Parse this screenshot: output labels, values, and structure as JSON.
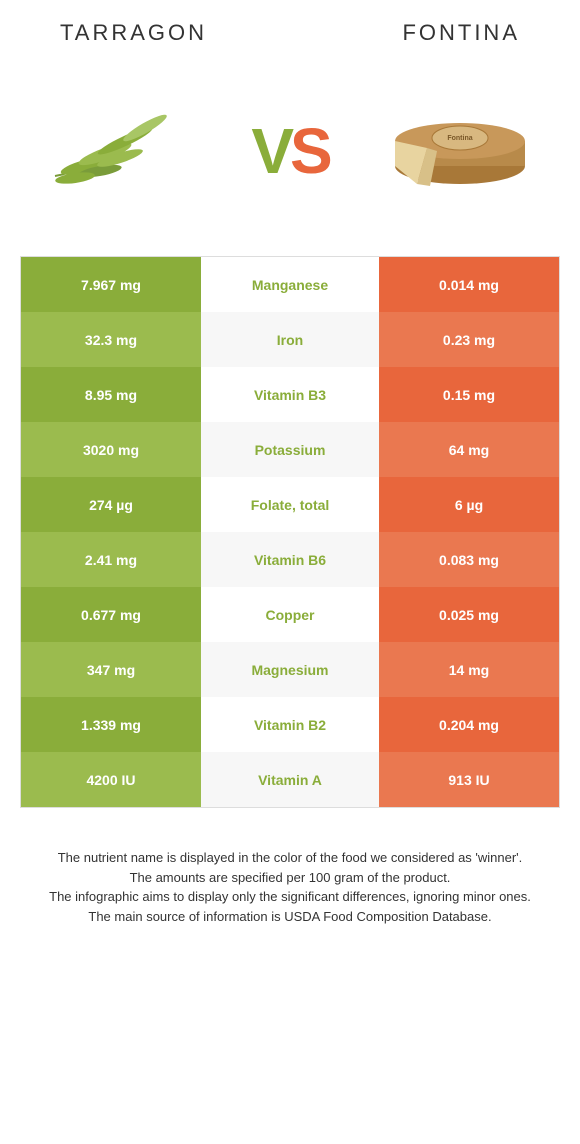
{
  "foods": {
    "left": "TARRAGON",
    "right": "Fontina"
  },
  "colors": {
    "left_bg_dark": "#8aad3a",
    "left_bg_light": "#9bbb4e",
    "right_bg_dark": "#e8663c",
    "right_bg_light": "#ea7850",
    "mid_winner_left": "#8aad3a",
    "mid_winner_right": "#e8663c"
  },
  "nutrients": [
    {
      "left": "7.967 mg",
      "name": "Manganese",
      "right": "0.014 mg",
      "winner": "left"
    },
    {
      "left": "32.3 mg",
      "name": "Iron",
      "right": "0.23 mg",
      "winner": "left"
    },
    {
      "left": "8.95 mg",
      "name": "Vitamin B3",
      "right": "0.15 mg",
      "winner": "left"
    },
    {
      "left": "3020 mg",
      "name": "Potassium",
      "right": "64 mg",
      "winner": "left"
    },
    {
      "left": "274 µg",
      "name": "Folate, total",
      "right": "6 µg",
      "winner": "left"
    },
    {
      "left": "2.41 mg",
      "name": "Vitamin B6",
      "right": "0.083 mg",
      "winner": "left"
    },
    {
      "left": "0.677 mg",
      "name": "Copper",
      "right": "0.025 mg",
      "winner": "left"
    },
    {
      "left": "347 mg",
      "name": "Magnesium",
      "right": "14 mg",
      "winner": "left"
    },
    {
      "left": "1.339 mg",
      "name": "Vitamin B2",
      "right": "0.204 mg",
      "winner": "left"
    },
    {
      "left": "4200 IU",
      "name": "Vitamin A",
      "right": "913 IU",
      "winner": "left"
    }
  ],
  "footer_lines": [
    "The nutrient name is displayed in the color of the food we considered as 'winner'.",
    "The amounts are specified per 100 gram of the product.",
    "The infographic aims to display only the significant differences, ignoring minor ones.",
    "The main source of information is USDA Food Composition Database."
  ]
}
